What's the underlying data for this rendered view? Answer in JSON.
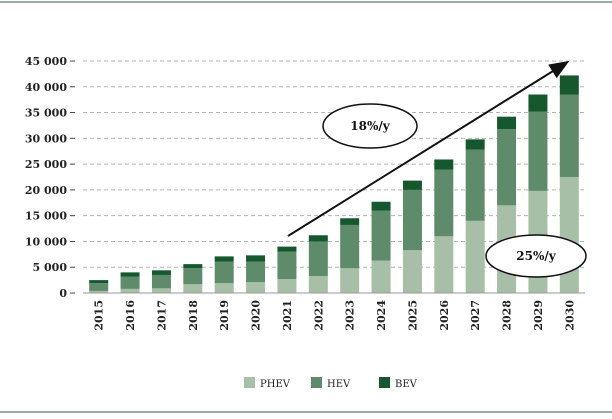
{
  "chart_data": {
    "type": "bar",
    "stacked": true,
    "categories": [
      "2015",
      "2016",
      "2017",
      "2018",
      "2019",
      "2020",
      "2021",
      "2022",
      "2023",
      "2024",
      "2025",
      "2026",
      "2027",
      "2028",
      "2029",
      "2030"
    ],
    "series": [
      {
        "name": "PHEV",
        "color": "#a6bfa6",
        "values": [
          400,
          800,
          900,
          1700,
          1900,
          2100,
          2700,
          3300,
          4800,
          6300,
          8300,
          11000,
          14000,
          17000,
          19800,
          22500
        ]
      },
      {
        "name": "HEV",
        "color": "#5e8b6a",
        "values": [
          1500,
          2400,
          2600,
          3100,
          4200,
          4000,
          5300,
          6700,
          8400,
          9700,
          11700,
          12900,
          13800,
          14800,
          15400,
          16000
        ]
      },
      {
        "name": "BEV",
        "color": "#15582e",
        "values": [
          600,
          800,
          900,
          800,
          1000,
          1200,
          1000,
          1200,
          1300,
          1700,
          1800,
          2000,
          2000,
          2400,
          3300,
          3700
        ]
      }
    ],
    "ylim": [
      0,
      45000
    ],
    "y_ticks": [
      0,
      5000,
      10000,
      15000,
      20000,
      25000,
      30000,
      35000,
      40000,
      45000
    ],
    "y_tick_labels": [
      "0",
      "5 000",
      "10 000",
      "15 000",
      "20 000",
      "25 000",
      "30 000",
      "35 000",
      "40 000",
      "45 000"
    ],
    "grid": true,
    "legend_position": "bottom",
    "annotations": [
      {
        "text": "18%/y"
      },
      {
        "text": "25%/y"
      }
    ]
  }
}
